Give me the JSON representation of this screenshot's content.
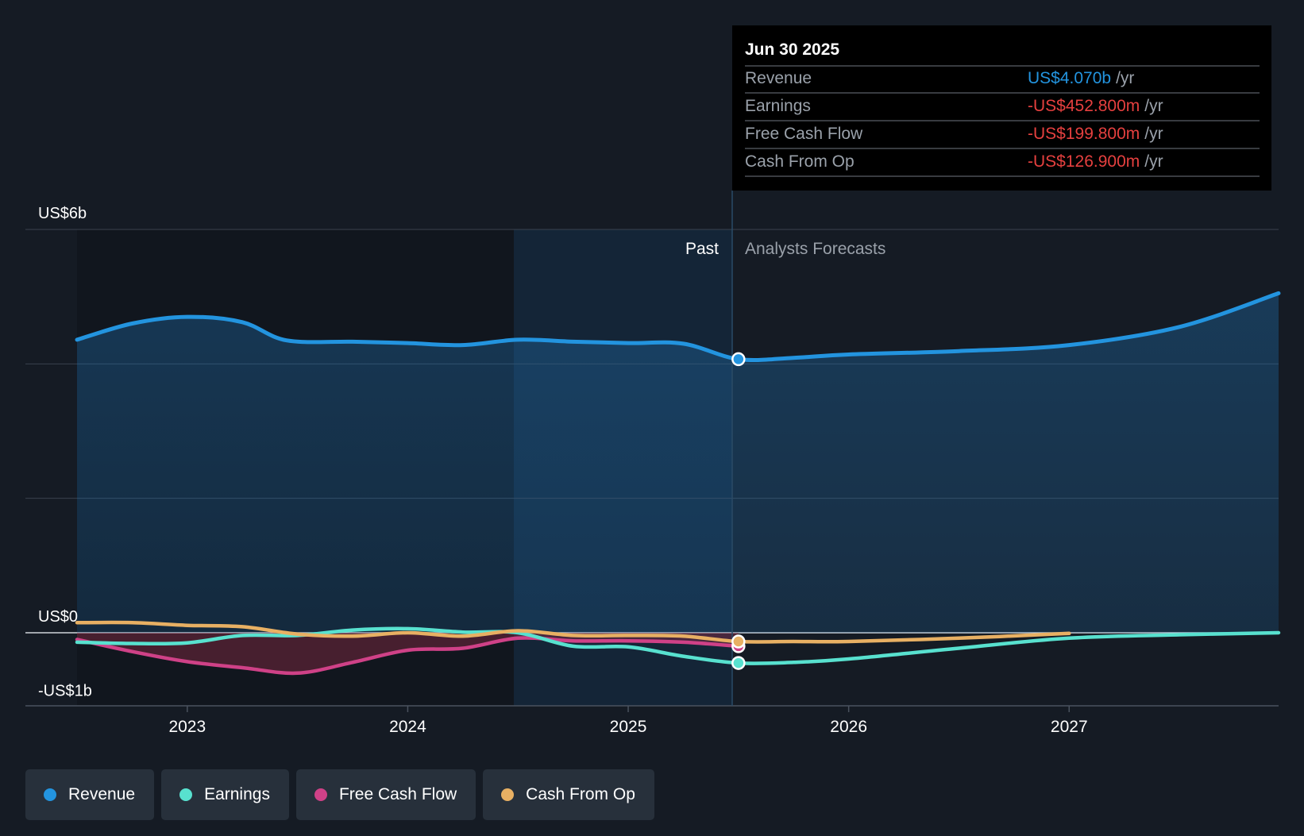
{
  "colors": {
    "background": "#151b24",
    "revenue": "#2394df",
    "earnings": "#58e1cf",
    "free_cash_flow": "#cf4187",
    "cash_from_op": "#e8b063",
    "negative": "#e5403f",
    "grid": "#3a424e"
  },
  "tooltip": {
    "date": "Jun 30 2025",
    "unit": "/yr",
    "rows": [
      {
        "label": "Revenue",
        "value": "US$4.070b",
        "color": "#2394df"
      },
      {
        "label": "Earnings",
        "value": "-US$452.800m",
        "color": "#e5403f"
      },
      {
        "label": "Free Cash Flow",
        "value": "-US$199.800m",
        "color": "#e5403f"
      },
      {
        "label": "Cash From Op",
        "value": "-US$126.900m",
        "color": "#e5403f"
      }
    ]
  },
  "legend": [
    {
      "label": "Revenue",
      "color": "#2394df"
    },
    {
      "label": "Earnings",
      "color": "#58e1cf"
    },
    {
      "label": "Free Cash Flow",
      "color": "#cf4187"
    },
    {
      "label": "Cash From Op",
      "color": "#e8b063"
    }
  ],
  "chart_data": {
    "type": "line",
    "title": "",
    "xlabel": "",
    "ylabel": "",
    "units": "US$ billions per year",
    "xlim": [
      2022.5,
      2027.95
    ],
    "ylim": [
      -1.0,
      6.0
    ],
    "x_ticks": [
      2023,
      2024,
      2025,
      2026,
      2027
    ],
    "x_tick_labels": [
      "2023",
      "2024",
      "2025",
      "2026",
      "2027"
    ],
    "y_tick_labels": [
      {
        "value": 6,
        "label": "US$6b"
      },
      {
        "value": 0,
        "label": "US$0"
      },
      {
        "value": -1,
        "label": "-US$1b"
      }
    ],
    "y_gridlines": [
      6,
      4,
      2,
      0
    ],
    "divider_x": 2025.5,
    "shaded_past_start": 2024.5,
    "past_label": "Past",
    "forecast_label": "Analysts Forecasts",
    "series": [
      {
        "name": "Revenue",
        "color": "#2394df",
        "x": [
          2022.5,
          2022.75,
          2023.0,
          2023.25,
          2023.45,
          2023.75,
          2024.0,
          2024.25,
          2024.5,
          2024.75,
          2025.0,
          2025.25,
          2025.5,
          2025.75,
          2026.0,
          2026.5,
          2027.0,
          2027.5,
          2027.95
        ],
        "y": [
          4.36,
          4.6,
          4.7,
          4.62,
          4.35,
          4.33,
          4.31,
          4.28,
          4.36,
          4.33,
          4.31,
          4.3,
          4.07,
          4.09,
          4.14,
          4.19,
          4.28,
          4.55,
          5.05
        ]
      },
      {
        "name": "Earnings",
        "color": "#58e1cf",
        "x": [
          2022.5,
          2022.75,
          2023.0,
          2023.25,
          2023.5,
          2023.75,
          2024.0,
          2024.25,
          2024.5,
          2024.75,
          2025.0,
          2025.25,
          2025.5,
          2025.75,
          2026.0,
          2026.5,
          2027.0,
          2027.5,
          2027.95
        ],
        "y": [
          -0.14,
          -0.16,
          -0.15,
          -0.04,
          -0.04,
          0.04,
          0.06,
          0.01,
          0.0,
          -0.2,
          -0.21,
          -0.35,
          -0.45,
          -0.44,
          -0.39,
          -0.23,
          -0.08,
          -0.03,
          0.0
        ]
      },
      {
        "name": "Free Cash Flow",
        "color": "#cf4187",
        "x": [
          2022.5,
          2022.75,
          2023.0,
          2023.25,
          2023.5,
          2023.75,
          2024.0,
          2024.25,
          2024.5,
          2024.75,
          2025.0,
          2025.25,
          2025.5
        ],
        "y": [
          -0.1,
          -0.28,
          -0.43,
          -0.52,
          -0.6,
          -0.44,
          -0.26,
          -0.23,
          -0.08,
          -0.12,
          -0.12,
          -0.14,
          -0.2
        ]
      },
      {
        "name": "Cash From Op",
        "color": "#e8b063",
        "x": [
          2022.5,
          2022.75,
          2023.0,
          2023.25,
          2023.5,
          2023.75,
          2024.0,
          2024.25,
          2024.5,
          2024.75,
          2025.0,
          2025.25,
          2025.5,
          2025.75,
          2026.0,
          2026.5,
          2027.0
        ],
        "y": [
          0.15,
          0.15,
          0.11,
          0.09,
          -0.02,
          -0.05,
          0.0,
          -0.05,
          0.03,
          -0.04,
          -0.04,
          -0.05,
          -0.13,
          -0.13,
          -0.13,
          -0.08,
          -0.01
        ]
      }
    ],
    "highlight": {
      "x": 2025.5,
      "points": [
        {
          "series": "Revenue",
          "y": 4.07
        },
        {
          "series": "Earnings",
          "y": -0.45
        },
        {
          "series": "Free Cash Flow",
          "y": -0.2
        },
        {
          "series": "Cash From Op",
          "y": -0.13
        }
      ]
    }
  }
}
